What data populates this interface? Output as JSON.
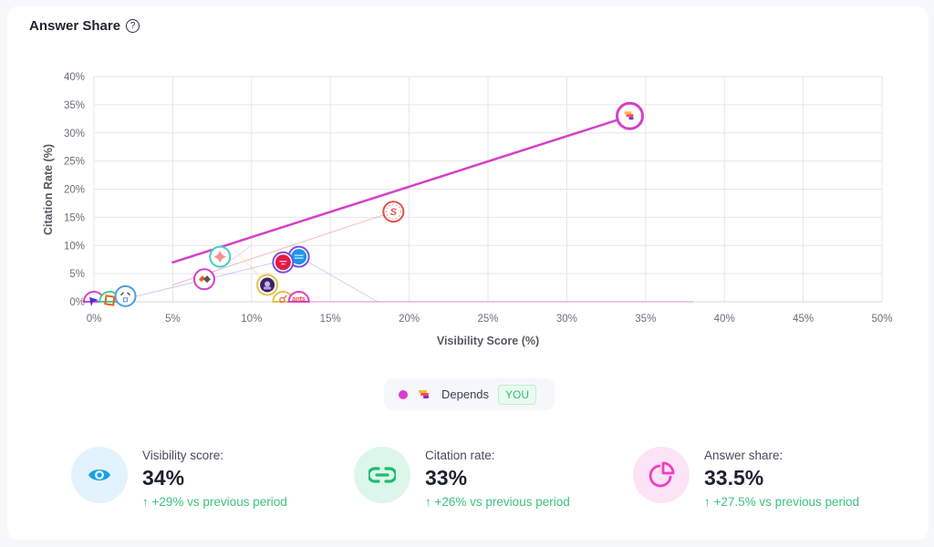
{
  "card": {
    "title": "Answer Share",
    "help_icon": "?"
  },
  "chart_data": {
    "type": "scatter",
    "xlabel": "Visibility Score (%)",
    "ylabel": "Citation Rate (%)",
    "xlim": [
      0,
      50
    ],
    "ylim": [
      0,
      40
    ],
    "x_ticks": [
      "0%",
      "5%",
      "10%",
      "15%",
      "20%",
      "25%",
      "30%",
      "35%",
      "40%",
      "45%",
      "50%"
    ],
    "y_ticks": [
      "0%",
      "5%",
      "10%",
      "15%",
      "20%",
      "25%",
      "30%",
      "35%",
      "40%"
    ],
    "grid": true,
    "points": [
      {
        "name": "Depends",
        "x": 34,
        "y": 33,
        "ring": "#d63fc8",
        "logo": "depends",
        "highlight": true
      },
      {
        "name": "competitor-s",
        "x": 19,
        "y": 16,
        "ring": "#e0504a",
        "logo": "s"
      },
      {
        "name": "competitor-content-canvas",
        "x": 13,
        "y": 8,
        "ring": "#7b4fe0",
        "logo": "canvas"
      },
      {
        "name": "competitor-mode",
        "x": 12,
        "y": 7,
        "ring": "#7b4fe0",
        "logo": "mode"
      },
      {
        "name": "competitor-star",
        "x": 8,
        "y": 8,
        "ring": "#3fd4c2",
        "logo": "star"
      },
      {
        "name": "competitor-blocks",
        "x": 7,
        "y": 4,
        "ring": "#d63fc8",
        "logo": "blocks"
      },
      {
        "name": "competitor-hat",
        "x": 11,
        "y": 3,
        "ring": "#e2c24a",
        "logo": "hat"
      },
      {
        "name": "competitor-symbol",
        "x": 12,
        "y": 0,
        "ring": "#e2c24a",
        "logo": "symbol"
      },
      {
        "name": "competitor-ants",
        "x": 13,
        "y": 0,
        "ring": "#d63fc8",
        "logo": "ants"
      },
      {
        "name": "competitor-arrow",
        "x": 0,
        "y": 0,
        "ring": "#d63fc8",
        "logo": "arrow"
      },
      {
        "name": "competitor-square",
        "x": 1,
        "y": 0,
        "ring": "#3fd48a",
        "logo": "square"
      },
      {
        "name": "competitor-face",
        "x": 2,
        "y": 1,
        "ring": "#4a9fe0",
        "logo": "face"
      }
    ],
    "trend_lines": [
      {
        "name": "depends-trend",
        "x1": 5,
        "y1": 7,
        "x2": 34,
        "y2": 33,
        "color": "#d63fc8",
        "width": 2.5,
        "opacity": 1
      },
      {
        "name": "s-trend",
        "x1": 5,
        "y1": 3,
        "x2": 19,
        "y2": 16,
        "color": "#f2a9a6",
        "width": 1,
        "opacity": 0.8
      },
      {
        "name": "canvas-trend",
        "x1": 2,
        "y1": 0.5,
        "x2": 13,
        "y2": 8,
        "color": "#c9b8f5",
        "width": 1,
        "opacity": 0.8
      },
      {
        "name": "canvas-decline",
        "x1": 13,
        "y1": 8,
        "x2": 18,
        "y2": 0,
        "color": "#c9c4f2",
        "width": 1,
        "opacity": 0.8
      },
      {
        "name": "ants-flat",
        "x1": 13,
        "y1": 0,
        "x2": 38,
        "y2": 0,
        "color": "#e49ad9",
        "width": 1.2,
        "opacity": 0.9
      },
      {
        "name": "blocks-trend",
        "x1": 7,
        "y1": 4,
        "x2": 10,
        "y2": 10,
        "color": "#f2c4ee",
        "width": 1,
        "opacity": 0.8
      },
      {
        "name": "hat-trend",
        "x1": 9,
        "y1": 9,
        "x2": 11,
        "y2": 3,
        "color": "#efe0a0",
        "width": 1,
        "opacity": 0.8
      }
    ]
  },
  "legend": {
    "dot_color": "#d63fc8",
    "name": "Depends",
    "badge": "YOU"
  },
  "kpis": [
    {
      "label": "Visibility score:",
      "value": "34%",
      "delta": "+29% vs previous period",
      "icon": "eye-icon",
      "bg": "#e3f3fd",
      "fg": "#1aa2e0"
    },
    {
      "label": "Citation rate:",
      "value": "33%",
      "delta": "+26% vs previous period",
      "icon": "link-icon",
      "bg": "#dcf7ea",
      "fg": "#1fbb74"
    },
    {
      "label": "Answer share:",
      "value": "33.5%",
      "delta": "+27.5% vs previous period",
      "icon": "pie-chart-icon",
      "bg": "#fde3f6",
      "fg": "#f03fc4"
    }
  ],
  "delta_arrow": "↑"
}
